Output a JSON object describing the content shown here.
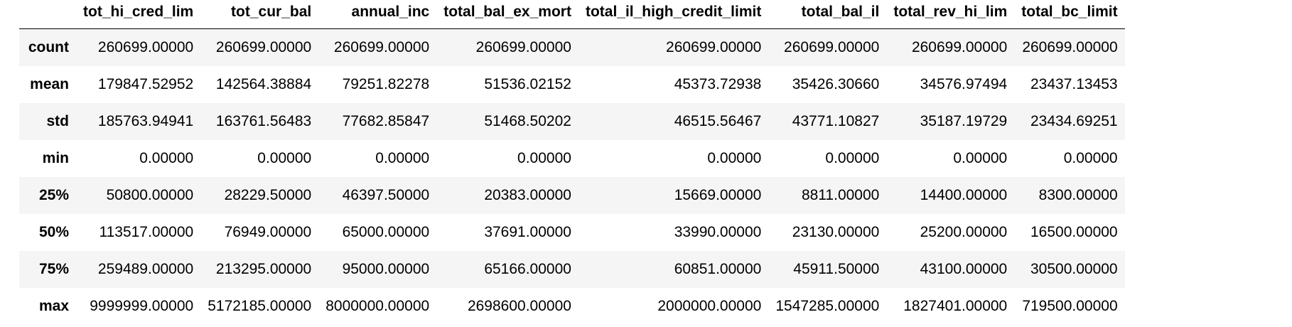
{
  "table": {
    "corner_label": "",
    "columns": [
      "tot_hi_cred_lim",
      "tot_cur_bal",
      "annual_inc",
      "total_bal_ex_mort",
      "total_il_high_credit_limit",
      "total_bal_il",
      "total_rev_hi_lim",
      "total_bc_limit"
    ],
    "rows": [
      {
        "index": "count",
        "values": [
          "260699.00000",
          "260699.00000",
          "260699.00000",
          "260699.00000",
          "260699.00000",
          "260699.00000",
          "260699.00000",
          "260699.00000"
        ]
      },
      {
        "index": "mean",
        "values": [
          "179847.52952",
          "142564.38884",
          "79251.82278",
          "51536.02152",
          "45373.72938",
          "35426.30660",
          "34576.97494",
          "23437.13453"
        ]
      },
      {
        "index": "std",
        "values": [
          "185763.94941",
          "163761.56483",
          "77682.85847",
          "51468.50202",
          "46515.56467",
          "43771.10827",
          "35187.19729",
          "23434.69251"
        ]
      },
      {
        "index": "min",
        "values": [
          "0.00000",
          "0.00000",
          "0.00000",
          "0.00000",
          "0.00000",
          "0.00000",
          "0.00000",
          "0.00000"
        ]
      },
      {
        "index": "25%",
        "values": [
          "50800.00000",
          "28229.50000",
          "46397.50000",
          "20383.00000",
          "15669.00000",
          "8811.00000",
          "14400.00000",
          "8300.00000"
        ]
      },
      {
        "index": "50%",
        "values": [
          "113517.00000",
          "76949.00000",
          "65000.00000",
          "37691.00000",
          "33990.00000",
          "23130.00000",
          "25200.00000",
          "16500.00000"
        ]
      },
      {
        "index": "75%",
        "values": [
          "259489.00000",
          "213295.00000",
          "95000.00000",
          "65166.00000",
          "60851.00000",
          "45911.50000",
          "43100.00000",
          "30500.00000"
        ]
      },
      {
        "index": "max",
        "values": [
          "9999999.00000",
          "5172185.00000",
          "8000000.00000",
          "2698600.00000",
          "2000000.00000",
          "1547285.00000",
          "1827401.00000",
          "719500.00000"
        ]
      }
    ]
  },
  "colors": {
    "striped_row": "#f5f5f5",
    "background": "#ffffff",
    "text": "#000000",
    "header_rule": "#000000"
  }
}
